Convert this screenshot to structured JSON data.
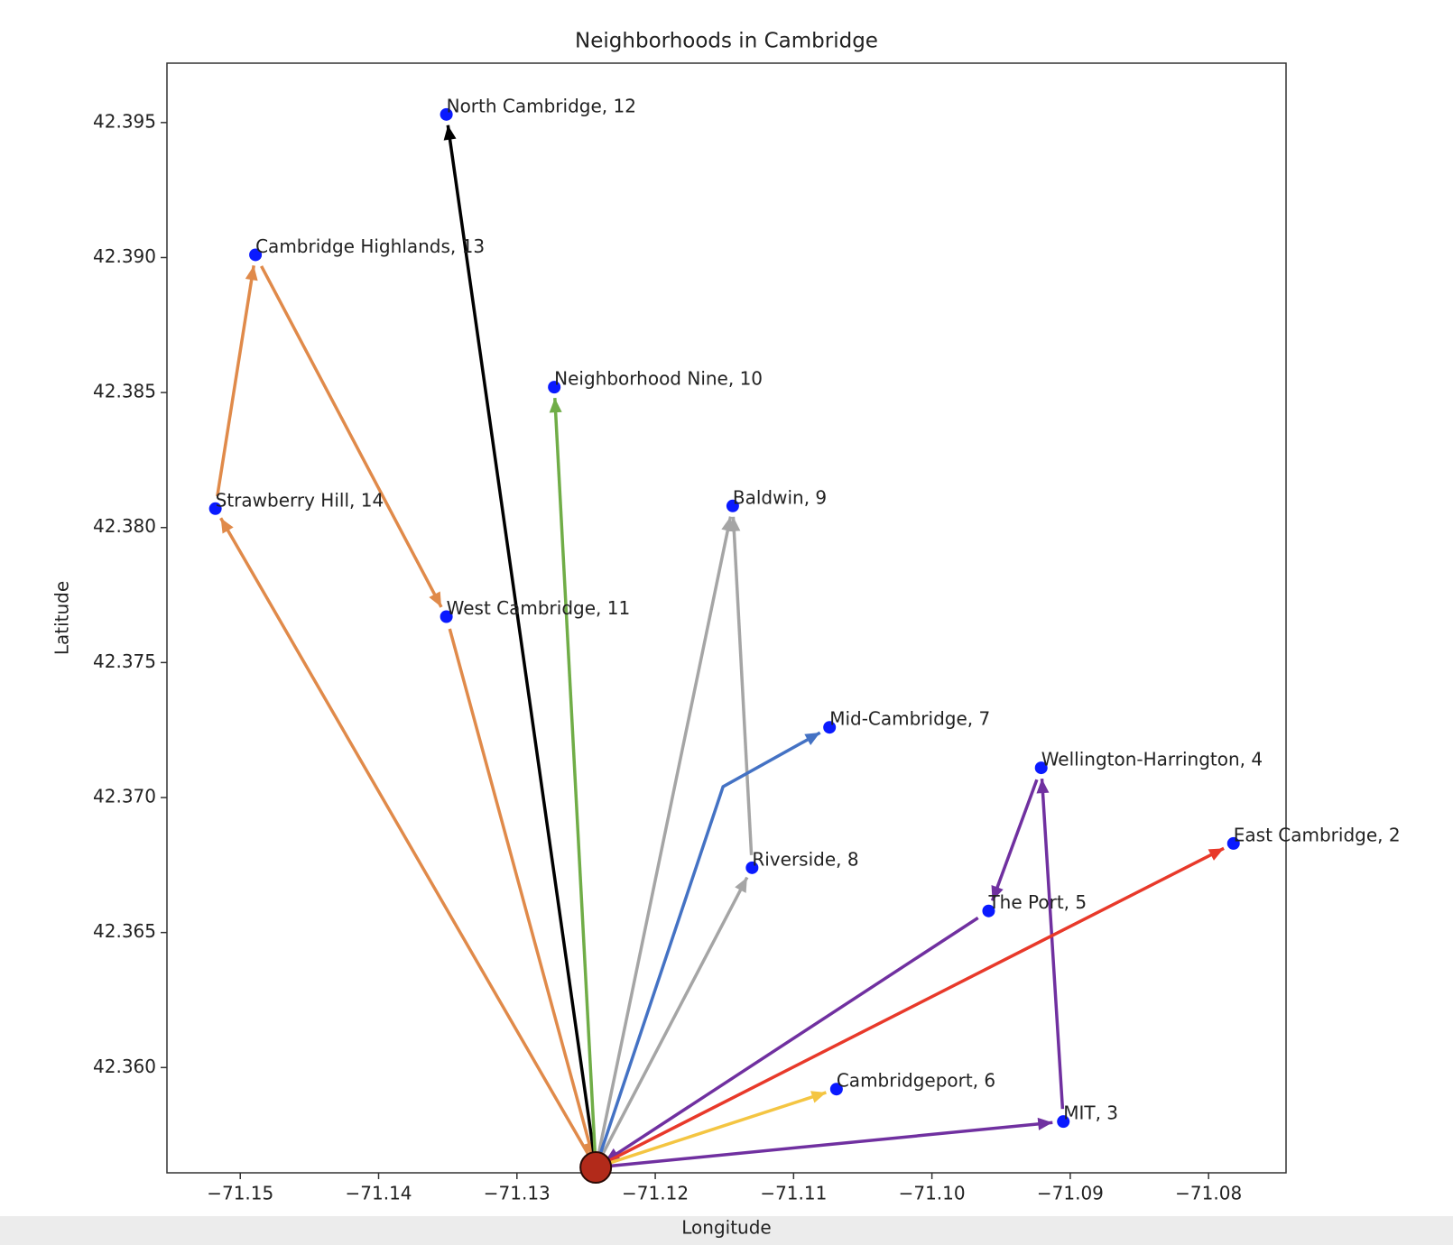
{
  "chart_data": {
    "type": "scatter",
    "title": "Neighborhoods in Cambridge",
    "x_label": "Longitude",
    "y_label": "Latitude",
    "xlim": [
      -71.1553,
      -71.0744
    ],
    "ylim": [
      42.3561,
      42.3972
    ],
    "xticks": [
      {
        "value": -71.15,
        "label": "−71.15"
      },
      {
        "value": -71.14,
        "label": "−71.14"
      },
      {
        "value": -71.13,
        "label": "−71.13"
      },
      {
        "value": -71.12,
        "label": "−71.12"
      },
      {
        "value": -71.11,
        "label": "−71.11"
      },
      {
        "value": -71.1,
        "label": "−71.10"
      },
      {
        "value": -71.09,
        "label": "−71.09"
      },
      {
        "value": -71.08,
        "label": "−71.08"
      }
    ],
    "yticks": [
      {
        "value": 42.36,
        "label": "42.360"
      },
      42.365,
      {
        "value": 42.37,
        "label": "42.370"
      },
      42.375,
      {
        "value": 42.38,
        "label": "42.380"
      },
      42.385,
      {
        "value": 42.39,
        "label": "42.390"
      },
      42.395
    ],
    "point_color": "#0a1aff",
    "points": [
      {
        "label": "North Cambridge, 12",
        "x": -71.1351,
        "y": 42.3953
      },
      {
        "label": "Cambridge Highlands, 13",
        "x": -71.1489,
        "y": 42.3901
      },
      {
        "label": "Neighborhood Nine, 10",
        "x": -71.1273,
        "y": 42.3852
      },
      {
        "label": "Strawberry Hill, 14",
        "x": -71.1518,
        "y": 42.3807
      },
      {
        "label": "Baldwin, 9",
        "x": -71.1144,
        "y": 42.3808
      },
      {
        "label": "West Cambridge, 11",
        "x": -71.1351,
        "y": 42.3767
      },
      {
        "label": "Mid-Cambridge, 7",
        "x": -71.1074,
        "y": 42.3726
      },
      {
        "label": "Wellington-Harrington, 4",
        "x": -71.0921,
        "y": 42.3711
      },
      {
        "label": "East Cambridge, 2",
        "x": -71.0782,
        "y": 42.3683
      },
      {
        "label": "Riverside, 8",
        "x": -71.113,
        "y": 42.3674
      },
      {
        "label": "The Port, 5",
        "x": -71.0959,
        "y": 42.3658
      },
      {
        "label": "Cambridgeport, 6",
        "x": -71.1069,
        "y": 42.3592
      },
      {
        "label": "MIT, 3",
        "x": -71.0905,
        "y": 42.358
      }
    ],
    "origin": {
      "x": -71.1243,
      "y": 42.3563,
      "color": "#b22a1a"
    },
    "arrows": [
      {
        "color": "#e08a4a",
        "x": [
          -71.1243,
          -71.1518
        ],
        "y": [
          42.3563,
          42.3807
        ]
      },
      {
        "color": "#e08a4a",
        "x": [
          -71.1518,
          -71.1489
        ],
        "y": [
          42.3807,
          42.3901
        ]
      },
      {
        "color": "#e08a4a",
        "x": [
          -71.1489,
          -71.1351
        ],
        "y": [
          42.3901,
          42.3767
        ]
      },
      {
        "color": "#e08a4a",
        "x": [
          -71.1351,
          -71.1243
        ],
        "y": [
          42.3767,
          42.3563
        ]
      },
      {
        "color": "#000000",
        "x": [
          -71.1243,
          -71.1351
        ],
        "y": [
          42.3563,
          42.3953
        ]
      },
      {
        "color": "#70ad47",
        "x": [
          -71.1243,
          -71.1273
        ],
        "y": [
          42.3563,
          42.3852
        ]
      },
      {
        "color": "#a5a5a5",
        "x": [
          -71.1243,
          -71.1144
        ],
        "y": [
          42.3563,
          42.3808
        ]
      },
      {
        "color": "#a5a5a5",
        "x": [
          -71.1243,
          -71.113
        ],
        "y": [
          42.3563,
          42.3674
        ]
      },
      {
        "color": "#a5a5a5",
        "x": [
          -71.113,
          -71.1144
        ],
        "y": [
          42.3674,
          42.3808
        ]
      },
      {
        "color": "#4472c4",
        "x": [
          -71.1243,
          -71.1151,
          -71.1074
        ],
        "y": [
          42.3563,
          42.3704,
          42.3726
        ]
      },
      {
        "color": "#7030a0",
        "x": [
          -71.1243,
          -71.0905
        ],
        "y": [
          42.3563,
          42.358
        ]
      },
      {
        "color": "#7030a0",
        "x": [
          -71.0905,
          -71.0921
        ],
        "y": [
          42.358,
          42.3711
        ]
      },
      {
        "color": "#7030a0",
        "x": [
          -71.0921,
          -71.0959
        ],
        "y": [
          42.3711,
          42.3658
        ]
      },
      {
        "color": "#7030a0",
        "x": [
          -71.0959,
          -71.1243
        ],
        "y": [
          42.3658,
          42.3563
        ]
      },
      {
        "color": "#e8392a",
        "x": [
          -71.1243,
          -71.0782
        ],
        "y": [
          42.3563,
          42.3683
        ]
      },
      {
        "color": "#f4c542",
        "x": [
          -71.1243,
          -71.1069
        ],
        "y": [
          42.3563,
          42.3592
        ]
      }
    ]
  }
}
